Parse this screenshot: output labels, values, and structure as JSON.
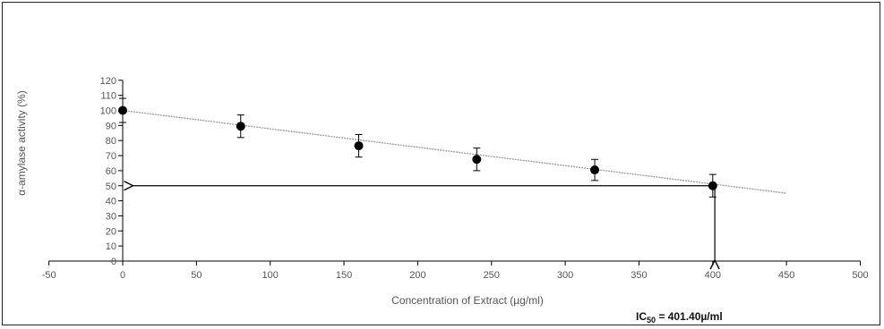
{
  "chart_data": {
    "type": "scatter",
    "title": "",
    "xlabel": "Concentration of Extract (µg/ml)",
    "ylabel": "α-amylase activity (%)",
    "xlim": [
      -50,
      500
    ],
    "ylim": [
      0,
      120
    ],
    "x_ticks": [
      -50,
      0,
      50,
      100,
      150,
      200,
      250,
      300,
      350,
      400,
      450,
      500
    ],
    "y_ticks": [
      0,
      10,
      20,
      30,
      40,
      50,
      60,
      70,
      80,
      90,
      100,
      110,
      120
    ],
    "x": [
      0,
      80,
      160,
      240,
      320,
      400
    ],
    "y": [
      100,
      89.5,
      76.5,
      67.5,
      60.5,
      50
    ],
    "error": [
      8,
      7.5,
      7.5,
      7.5,
      7,
      7.5
    ],
    "trendline": {
      "x": [
        0,
        450
      ],
      "y": [
        100,
        45
      ]
    },
    "guide": {
      "y_level": 50,
      "x_level": 401.4
    },
    "grid": false,
    "legend": "none",
    "annotation": {
      "prefix": "IC",
      "subscript": "50",
      "suffix": " = 401.40µ/ml"
    },
    "colors": {
      "marker": "#000000",
      "trendline": "#9a9a9a",
      "axis": "#000000",
      "text": "#555555"
    }
  }
}
